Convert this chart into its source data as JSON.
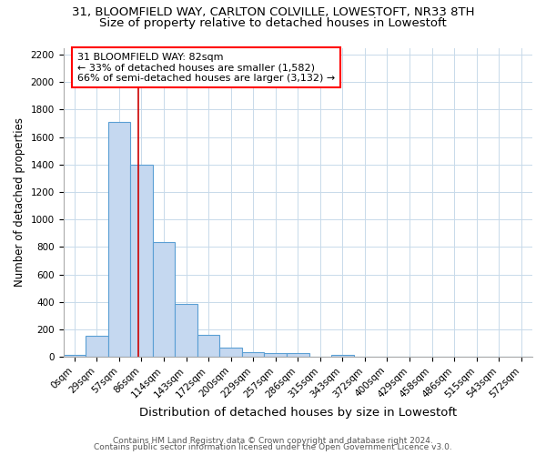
{
  "title1": "31, BLOOMFIELD WAY, CARLTON COLVILLE, LOWESTOFT, NR33 8TH",
  "title2": "Size of property relative to detached houses in Lowestoft",
  "xlabel": "Distribution of detached houses by size in Lowestoft",
  "ylabel": "Number of detached properties",
  "footer1": "Contains HM Land Registry data © Crown copyright and database right 2024.",
  "footer2": "Contains public sector information licensed under the Open Government Licence v3.0.",
  "annotation_line1": "31 BLOOMFIELD WAY: 82sqm",
  "annotation_line2": "← 33% of detached houses are smaller (1,582)",
  "annotation_line3": "66% of semi-detached houses are larger (3,132) →",
  "bar_categories": [
    "0sqm",
    "29sqm",
    "57sqm",
    "86sqm",
    "114sqm",
    "143sqm",
    "172sqm",
    "200sqm",
    "229sqm",
    "257sqm",
    "286sqm",
    "315sqm",
    "343sqm",
    "372sqm",
    "400sqm",
    "429sqm",
    "458sqm",
    "486sqm",
    "515sqm",
    "543sqm",
    "572sqm"
  ],
  "bar_values": [
    15,
    155,
    1710,
    1400,
    835,
    385,
    160,
    65,
    35,
    25,
    25,
    0,
    15,
    0,
    0,
    0,
    0,
    0,
    0,
    0,
    0
  ],
  "bar_color": "#c5d8f0",
  "bar_edge_color": "#5a9fd4",
  "bar_edge_width": 0.8,
  "vline_color": "#cc0000",
  "ylim": [
    0,
    2250
  ],
  "yticks": [
    0,
    200,
    400,
    600,
    800,
    1000,
    1200,
    1400,
    1600,
    1800,
    2000,
    2200
  ],
  "background_color": "#ffffff",
  "grid_color": "#c8daea",
  "title1_fontsize": 9.5,
  "title2_fontsize": 9.5,
  "xlabel_fontsize": 9.5,
  "ylabel_fontsize": 8.5,
  "tick_fontsize": 7.5,
  "annotation_fontsize": 8,
  "footer_fontsize": 6.5
}
